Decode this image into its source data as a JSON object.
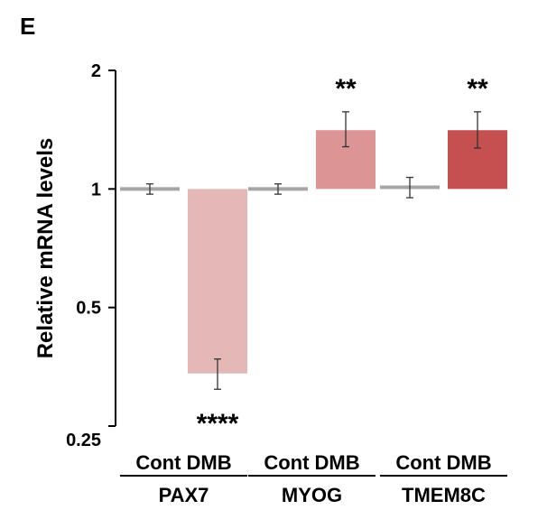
{
  "panel_label": "E",
  "chart_data": {
    "type": "bar",
    "ylabel": "Relative mRNA levels",
    "yscale": "log2",
    "ylim": [
      0.25,
      2
    ],
    "yticks": [
      0.25,
      0.5,
      1,
      2
    ],
    "ytick_labels": [
      "0.25",
      "0.5",
      "1",
      "2"
    ],
    "baseline": 1,
    "groups": [
      {
        "gene": "PAX7",
        "condition_labels": "Cont DMB",
        "bars": [
          {
            "condition": "Cont",
            "value": 1.0,
            "err_low": 0.97,
            "err_high": 1.03,
            "color": "#a6a6a6",
            "sig": ""
          },
          {
            "condition": "DMB",
            "value": 0.34,
            "err_low": 0.31,
            "err_high": 0.37,
            "color": "#e5b8b8",
            "sig": "****"
          }
        ]
      },
      {
        "gene": "MYOG",
        "condition_labels": "Cont DMB",
        "bars": [
          {
            "condition": "Cont",
            "value": 1.0,
            "err_low": 0.97,
            "err_high": 1.03,
            "color": "#a6a6a6",
            "sig": ""
          },
          {
            "condition": "DMB",
            "value": 1.41,
            "err_low": 1.28,
            "err_high": 1.57,
            "color": "#dc9494",
            "sig": "**"
          }
        ]
      },
      {
        "gene": "TMEM8C",
        "condition_labels": "Cont DMB",
        "bars": [
          {
            "condition": "Cont",
            "value": 1.01,
            "err_low": 0.95,
            "err_high": 1.07,
            "color": "#a6a6a6",
            "sig": ""
          },
          {
            "condition": "DMB",
            "value": 1.41,
            "err_low": 1.27,
            "err_high": 1.57,
            "color": "#c55050",
            "sig": "**"
          }
        ]
      }
    ]
  }
}
